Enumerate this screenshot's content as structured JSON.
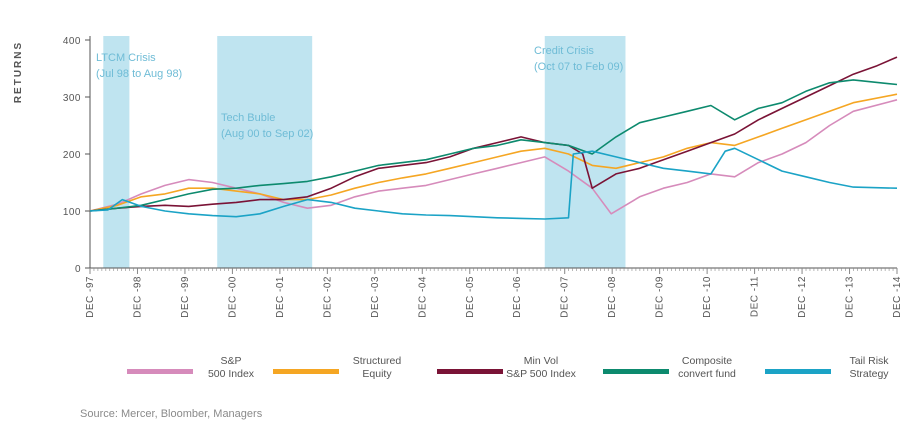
{
  "chart_data": {
    "type": "line",
    "ylabel": "RETURNS",
    "ylim": [
      0,
      400
    ],
    "yticks": [
      0,
      100,
      200,
      300,
      400
    ],
    "x_range": [
      1997.92,
      2014.92
    ],
    "x_ticks": [
      "DEC -97",
      "DEC -98",
      "DEC -99",
      "DEC -00",
      "DEC -01",
      "DEC -02",
      "DEC -03",
      "DEC -04",
      "DEC -05",
      "DEC -06",
      "DEC -07",
      "DEC -08",
      "DEC -09",
      "DEC -10",
      "DEC -11",
      "DEC -12",
      "DEC -13",
      "DEC -14"
    ],
    "shaded_periods": [
      {
        "label": "LTCM Crisis",
        "period": "(Jul 98 to Aug 98)",
        "start": 1998.2,
        "end": 1998.75
      },
      {
        "label": "Tech Buble",
        "period": "(Aug 00 to Sep 02)",
        "start": 2000.6,
        "end": 2002.6
      },
      {
        "label": "Credit Crisis",
        "period": "(Oct 07 to Feb 09)",
        "start": 2007.5,
        "end": 2009.2
      }
    ],
    "series": [
      {
        "name": "S&P 500 Index",
        "color": "#d68bbb",
        "x": [
          1997.92,
          1998.5,
          1999.0,
          1999.5,
          2000.0,
          2000.5,
          2001.0,
          2001.5,
          2002.0,
          2002.5,
          2003.0,
          2003.5,
          2004.0,
          2004.5,
          2005.0,
          2005.5,
          2006.0,
          2006.5,
          2007.0,
          2007.5,
          2008.0,
          2008.5,
          2008.9,
          2009.2,
          2009.5,
          2010.0,
          2010.5,
          2011.0,
          2011.5,
          2012.0,
          2012.5,
          2013.0,
          2013.5,
          2014.0,
          2014.92
        ],
        "values": [
          100,
          112,
          130,
          145,
          155,
          150,
          140,
          130,
          115,
          105,
          110,
          125,
          135,
          140,
          145,
          155,
          165,
          175,
          185,
          195,
          170,
          140,
          95,
          110,
          125,
          140,
          150,
          165,
          160,
          185,
          200,
          220,
          250,
          275,
          295
        ]
      },
      {
        "name": "Structured Equity",
        "color": "#f5a623",
        "x": [
          1997.92,
          1998.5,
          1999.0,
          1999.5,
          2000.0,
          2000.5,
          2001.0,
          2001.5,
          2002.0,
          2002.5,
          2003.0,
          2003.5,
          2004.0,
          2004.5,
          2005.0,
          2005.5,
          2006.0,
          2006.5,
          2007.0,
          2007.5,
          2008.0,
          2008.5,
          2009.0,
          2009.5,
          2010.0,
          2010.5,
          2011.0,
          2011.5,
          2012.0,
          2012.5,
          2013.0,
          2013.5,
          2014.0,
          2014.92
        ],
        "values": [
          100,
          110,
          125,
          130,
          140,
          140,
          135,
          130,
          120,
          120,
          128,
          140,
          150,
          158,
          165,
          175,
          185,
          195,
          205,
          210,
          200,
          180,
          175,
          185,
          195,
          210,
          220,
          215,
          230,
          245,
          260,
          275,
          290,
          305
        ]
      },
      {
        "name": "Min Vol S&P 500 Index",
        "color": "#7a1336",
        "x": [
          1997.92,
          1998.5,
          1999.0,
          1999.5,
          2000.0,
          2000.5,
          2001.0,
          2001.5,
          2002.0,
          2002.5,
          2003.0,
          2003.5,
          2004.0,
          2004.5,
          2005.0,
          2005.5,
          2006.0,
          2006.5,
          2007.0,
          2007.5,
          2008.0,
          2008.3,
          2008.5,
          2009.0,
          2009.5,
          2010.0,
          2010.5,
          2011.0,
          2011.5,
          2012.0,
          2012.5,
          2013.0,
          2013.5,
          2014.0,
          2014.5,
          2014.92
        ],
        "values": [
          100,
          105,
          108,
          110,
          108,
          112,
          115,
          120,
          120,
          125,
          140,
          160,
          175,
          180,
          185,
          195,
          210,
          220,
          230,
          220,
          215,
          200,
          140,
          165,
          175,
          190,
          205,
          220,
          235,
          260,
          280,
          300,
          320,
          340,
          355,
          370
        ]
      },
      {
        "name": "Composite convert fund",
        "color": "#0d8a6e",
        "x": [
          1997.92,
          1998.5,
          1999.0,
          1999.5,
          2000.0,
          2000.5,
          2001.0,
          2001.5,
          2002.0,
          2002.5,
          2003.0,
          2003.5,
          2004.0,
          2004.5,
          2005.0,
          2005.5,
          2006.0,
          2006.5,
          2007.0,
          2007.5,
          2008.0,
          2008.5,
          2009.0,
          2009.5,
          2010.0,
          2010.5,
          2011.0,
          2011.5,
          2012.0,
          2012.5,
          2013.0,
          2013.5,
          2014.0,
          2014.92
        ],
        "values": [
          100,
          105,
          110,
          120,
          130,
          138,
          140,
          145,
          148,
          152,
          160,
          170,
          180,
          185,
          190,
          200,
          210,
          215,
          225,
          220,
          215,
          200,
          230,
          255,
          265,
          275,
          285,
          260,
          280,
          290,
          310,
          325,
          330,
          322
        ]
      },
      {
        "name": "Tail Risk Strategy",
        "color": "#1ba3c6",
        "x": [
          1997.92,
          1998.3,
          1998.6,
          1999.0,
          1999.5,
          2000.0,
          2000.5,
          2001.0,
          2001.5,
          2002.0,
          2002.5,
          2003.0,
          2003.5,
          2004.0,
          2004.5,
          2005.0,
          2005.5,
          2006.0,
          2006.5,
          2007.0,
          2007.5,
          2008.0,
          2008.1,
          2008.5,
          2009.0,
          2009.5,
          2010.0,
          2010.5,
          2011.0,
          2011.3,
          2011.5,
          2012.0,
          2012.5,
          2013.0,
          2013.5,
          2014.0,
          2014.92
        ],
        "values": [
          100,
          102,
          120,
          108,
          100,
          95,
          92,
          90,
          95,
          108,
          120,
          115,
          105,
          100,
          95,
          93,
          92,
          90,
          88,
          87,
          86,
          88,
          200,
          205,
          195,
          185,
          175,
          170,
          165,
          205,
          210,
          190,
          170,
          160,
          150,
          142,
          140
        ]
      }
    ]
  },
  "legend": [
    {
      "line1": "S&P",
      "line2": "500 Index",
      "color": "#d68bbb"
    },
    {
      "line1": "Structured",
      "line2": "Equity",
      "color": "#f5a623"
    },
    {
      "line1": "Min Vol",
      "line2": "S&P 500 Index",
      "color": "#7a1336"
    },
    {
      "line1": "Composite",
      "line2": "convert fund",
      "color": "#0d8a6e"
    },
    {
      "line1": "Tail Risk",
      "line2": "Strategy",
      "color": "#1ba3c6"
    }
  ],
  "source": "Source: Mercer, Bloomber, Managers",
  "colors": {
    "shade": "#bfe4f0",
    "axis": "#555555",
    "annotation": "#6fbcd6"
  }
}
